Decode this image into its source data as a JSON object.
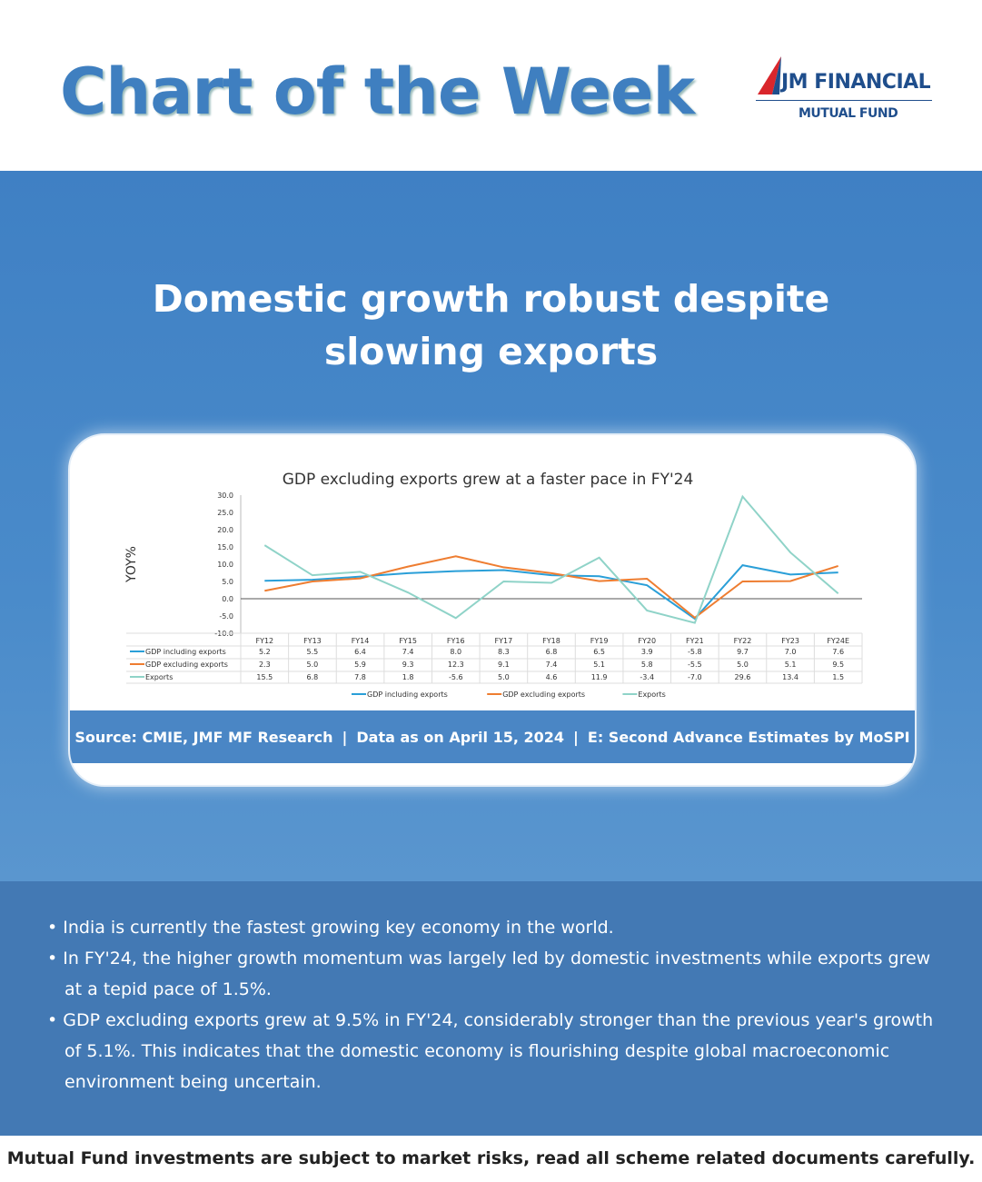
{
  "header": {
    "title": "Chart of the Week",
    "logo_name": "JM FINANCIAL",
    "logo_sub": "MUTUAL FUND"
  },
  "headline": [
    "Domestic growth robust despite",
    "slowing exports"
  ],
  "chart_data": {
    "type": "line",
    "title": "GDP excluding exports grew at a faster pace in FY'24",
    "ylabel": "YOY%",
    "ylim": [
      -10,
      30
    ],
    "yticks": [
      "30.0",
      "25.0",
      "20.0",
      "15.0",
      "10.0",
      "5.0",
      "0.0",
      "-5.0",
      "-10.0"
    ],
    "categories": [
      "FY12",
      "FY13",
      "FY14",
      "FY15",
      "FY16",
      "FY17",
      "FY18",
      "FY19",
      "FY20",
      "FY21",
      "FY22",
      "FY23",
      "FY24E"
    ],
    "series": [
      {
        "name": "GDP including exports",
        "color": "#2a9fd8",
        "values": [
          5.2,
          5.5,
          6.4,
          7.4,
          8.0,
          8.3,
          6.8,
          6.5,
          3.9,
          -5.8,
          9.7,
          7.0,
          7.6
        ]
      },
      {
        "name": "GDP excluding exports",
        "color": "#ee7d31",
        "values": [
          2.3,
          5.0,
          5.9,
          9.3,
          12.3,
          9.1,
          7.4,
          5.1,
          5.8,
          -5.5,
          5.0,
          5.1,
          9.5
        ]
      },
      {
        "name": "Exports",
        "color": "#8fd3c8",
        "values": [
          15.5,
          6.8,
          7.8,
          1.8,
          -5.6,
          5.0,
          4.6,
          11.9,
          -3.4,
          -7.0,
          29.6,
          13.4,
          1.5
        ]
      }
    ],
    "legend": "bottom",
    "data_table": true
  },
  "source": {
    "a": "Source: CMIE, JMF MF Research",
    "sep": "|",
    "b": "Data as on April 15, 2024",
    "c": "E: Second Advance Estimates by MoSPI"
  },
  "bullets": [
    "India is currently the fastest growing key economy in the world.",
    "In FY'24, the higher growth momentum was largely led by domestic investments while exports grew at a tepid pace of 1.5%.",
    "GDP excluding exports grew at 9.5% in FY'24, considerably stronger than the previous year's growth of 5.1%. This indicates that the domestic economy is flourishing despite global macroeconomic environment being uncertain."
  ],
  "disclaimer": "Mutual Fund investments are subject to market risks, read all scheme related documents carefully."
}
